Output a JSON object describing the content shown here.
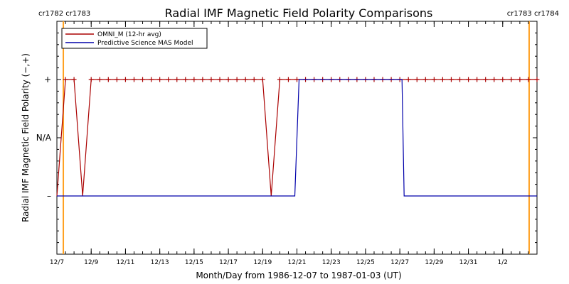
{
  "chart_data": {
    "type": "line",
    "title": "Radial IMF Magnetic Field Polarity Comparisons",
    "xlabel": "Month/Day from 1986-12-07 to 1987-01-03 (UT)",
    "ylabel": "Radial IMF Magnetic Field Polarity (−,+)",
    "xlim": [
      "1986-12-07",
      "1987-01-03"
    ],
    "x_tick_labels": [
      "12/7",
      "12/9",
      "12/11",
      "12/13",
      "12/15",
      "12/17",
      "12/19",
      "12/21",
      "12/23",
      "12/25",
      "12/27",
      "12/29",
      "12/31",
      "1/2"
    ],
    "y_tick_labels": [
      "+",
      "N/A",
      "–"
    ],
    "y_levels": {
      "+": 1,
      "N/A": 0,
      "–": -1
    },
    "ylim": [
      -2,
      2
    ],
    "legend_position": "top-left",
    "carrington_left": {
      "labels": "cr1782 cr1783",
      "boundary": "1986-12-07T09:00"
    },
    "carrington_right": {
      "labels": "cr1783 cr1784",
      "boundary": "1987-01-03T13:00"
    },
    "boundary_color": "#ffa020",
    "series": [
      {
        "name": "OMNI_M (12-hr avg)",
        "color": "#aa0000",
        "marker": "+",
        "points": [
          [
            "1986-12-07T00:00",
            -1
          ],
          [
            "1986-12-07T12:00",
            1
          ],
          [
            "1986-12-08T00:00",
            1
          ],
          [
            "1986-12-08T12:00",
            -1
          ],
          [
            "1986-12-09T00:00",
            1
          ],
          [
            "1986-12-09T12:00",
            1
          ],
          [
            "1986-12-10T00:00",
            1
          ],
          [
            "1986-12-10T12:00",
            1
          ],
          [
            "1986-12-11T00:00",
            1
          ],
          [
            "1986-12-11T12:00",
            1
          ],
          [
            "1986-12-12T00:00",
            1
          ],
          [
            "1986-12-12T12:00",
            1
          ],
          [
            "1986-12-13T00:00",
            1
          ],
          [
            "1986-12-13T12:00",
            1
          ],
          [
            "1986-12-14T00:00",
            1
          ],
          [
            "1986-12-14T12:00",
            1
          ],
          [
            "1986-12-15T00:00",
            1
          ],
          [
            "1986-12-15T12:00",
            1
          ],
          [
            "1986-12-16T00:00",
            1
          ],
          [
            "1986-12-16T12:00",
            1
          ],
          [
            "1986-12-17T00:00",
            1
          ],
          [
            "1986-12-17T12:00",
            1
          ],
          [
            "1986-12-18T00:00",
            1
          ],
          [
            "1986-12-18T12:00",
            1
          ],
          [
            "1986-12-19T00:00",
            1
          ],
          [
            "1986-12-19T12:00",
            -1
          ],
          [
            "1986-12-20T00:00",
            1
          ],
          [
            "1986-12-20T12:00",
            1
          ],
          [
            "1986-12-21T00:00",
            1
          ],
          [
            "1986-12-21T12:00",
            1
          ],
          [
            "1986-12-22T00:00",
            1
          ],
          [
            "1986-12-22T12:00",
            1
          ],
          [
            "1986-12-23T00:00",
            1
          ],
          [
            "1986-12-23T12:00",
            1
          ],
          [
            "1986-12-24T00:00",
            1
          ],
          [
            "1986-12-24T12:00",
            1
          ],
          [
            "1986-12-25T00:00",
            1
          ],
          [
            "1986-12-25T12:00",
            1
          ],
          [
            "1986-12-26T00:00",
            1
          ],
          [
            "1986-12-26T12:00",
            1
          ],
          [
            "1986-12-27T00:00",
            1
          ],
          [
            "1986-12-27T12:00",
            1
          ],
          [
            "1986-12-28T00:00",
            1
          ],
          [
            "1986-12-28T12:00",
            1
          ],
          [
            "1986-12-29T00:00",
            1
          ],
          [
            "1986-12-29T12:00",
            1
          ],
          [
            "1986-12-30T00:00",
            1
          ],
          [
            "1986-12-30T12:00",
            1
          ],
          [
            "1986-12-31T00:00",
            1
          ],
          [
            "1986-12-31T12:00",
            1
          ],
          [
            "1987-01-01T00:00",
            1
          ],
          [
            "1987-01-01T12:00",
            1
          ],
          [
            "1987-01-02T00:00",
            1
          ],
          [
            "1987-01-02T12:00",
            1
          ],
          [
            "1987-01-03T00:00",
            1
          ],
          [
            "1987-01-03T12:00",
            1
          ],
          [
            "1987-01-04T00:00",
            1
          ]
        ]
      },
      {
        "name": "Predictive Science MAS Model",
        "color": "#0000aa",
        "marker": "",
        "points": [
          [
            "1986-12-07T00:00",
            -1
          ],
          [
            "1986-12-20T21:00",
            -1
          ],
          [
            "1986-12-21T03:00",
            1
          ],
          [
            "1986-12-27T03:00",
            1
          ],
          [
            "1986-12-27T06:00",
            -1
          ],
          [
            "1987-01-04T00:00",
            -1
          ]
        ]
      }
    ]
  }
}
